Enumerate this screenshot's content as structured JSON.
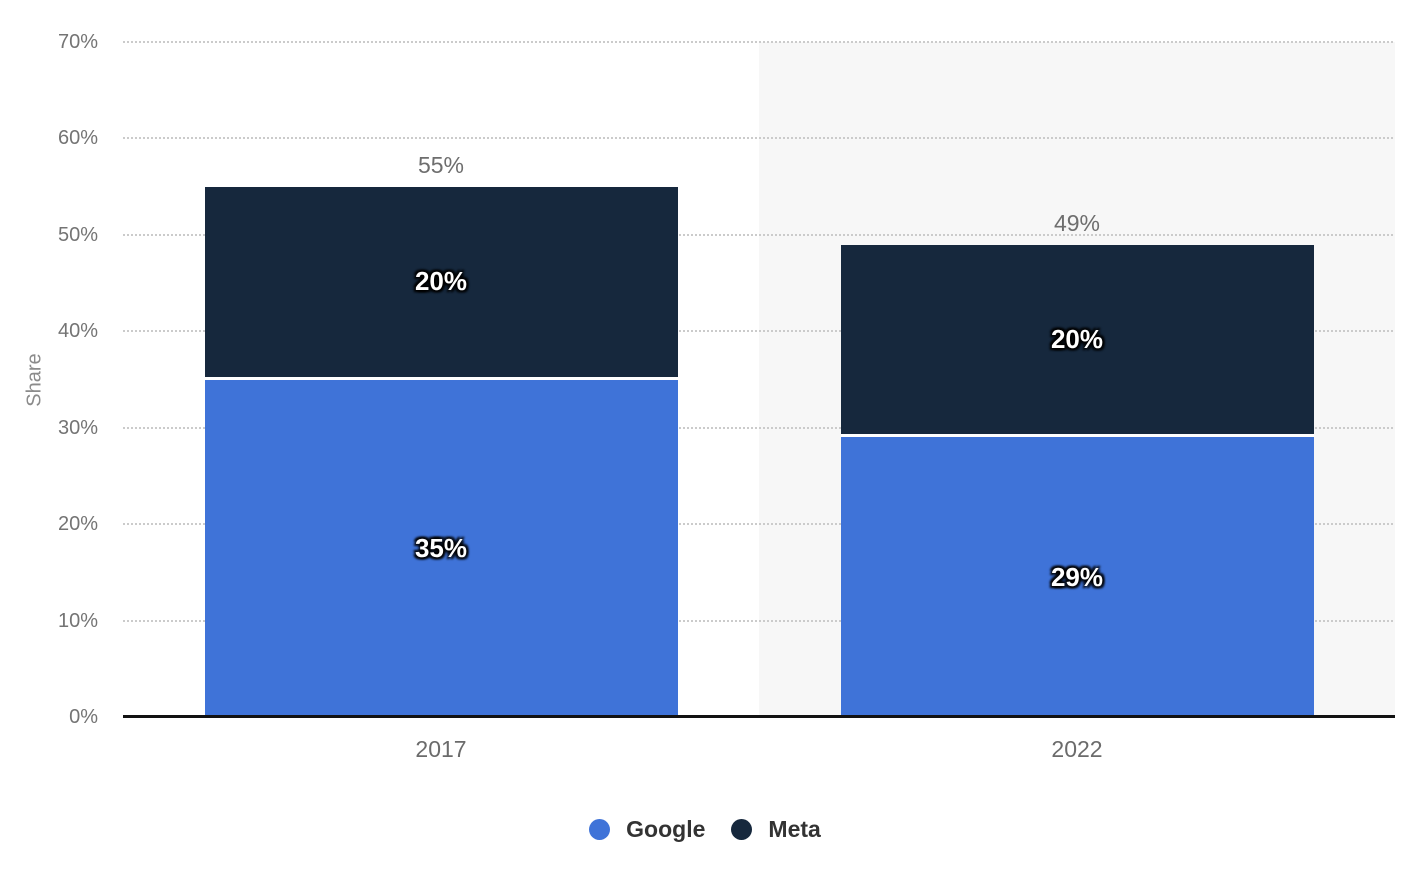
{
  "chart_data": {
    "type": "bar",
    "stacked": true,
    "title": "",
    "xlabel": "",
    "ylabel": "Share",
    "categories": [
      "2017",
      "2022"
    ],
    "series": [
      {
        "name": "Google",
        "color": "#3F73D8",
        "values": [
          35,
          29
        ]
      },
      {
        "name": "Meta",
        "color": "#16283D",
        "values": [
          20,
          20
        ]
      }
    ],
    "totals": [
      55,
      49
    ],
    "label_format": "{v}%",
    "y_ticks": [
      "0%",
      "10%",
      "20%",
      "30%",
      "40%",
      "50%",
      "60%",
      "70%"
    ],
    "ylim": [
      0,
      70
    ],
    "grid": "dotted-horizontal",
    "legend_position": "bottom",
    "highlighted_category": "2022",
    "annotations": {
      "totals_labels": [
        "55%",
        "49%"
      ],
      "segment_labels": [
        [
          "35%",
          "20%"
        ],
        [
          "29%",
          "20%"
        ]
      ]
    }
  },
  "colors": {
    "google_blue": "#3F73D8",
    "meta_navy": "#16283D",
    "highlight_band": "#F7F7F7",
    "gridline": "#CBCBCB",
    "axis_line": "#121212",
    "tick_text": "#747474",
    "category_text": "#6B6B6B",
    "total_text": "#6E6E6E",
    "legend_text": "#333333",
    "value_label_text": "#FFFFFF"
  }
}
